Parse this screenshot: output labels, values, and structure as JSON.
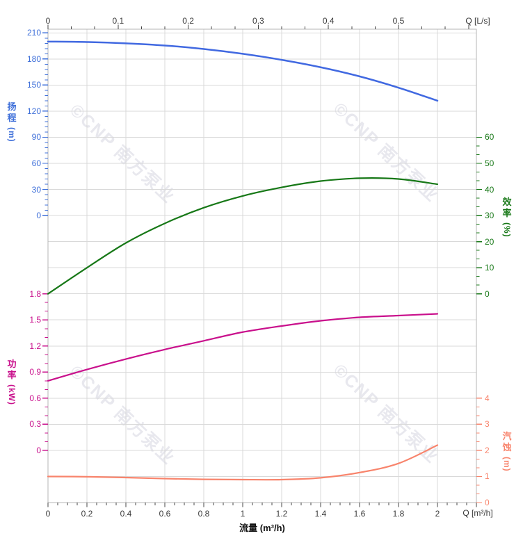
{
  "watermark": {
    "text": "©CNP 南方泵业",
    "color": "#e8e8ee"
  },
  "top_axis": {
    "unit_label": "Q [L/s]",
    "tick_labels": [
      "0",
      "0.1",
      "0.2",
      "0.3",
      "0.4",
      "0.5"
    ],
    "text_color": "#3a3a3a"
  },
  "bottom_axis": {
    "unit_label": "Q [m³/h]",
    "title": "流量 (m³/h)",
    "tick_labels": [
      "0",
      "0.2",
      "0.4",
      "0.6",
      "0.8",
      "1",
      "1.2",
      "1.4",
      "1.6",
      "1.8",
      "2"
    ],
    "text_color": "#3a3a3a"
  },
  "left_axes": {
    "head": {
      "title": "扬程",
      "unit": "(m)",
      "color": "#3E6FD9",
      "tick_labels": [
        "210",
        "180",
        "150",
        "120",
        "90",
        "60",
        "30",
        "0"
      ]
    },
    "power": {
      "title": "功率",
      "unit": "(kW)",
      "color": "#C9108C",
      "tick_labels": [
        "1.8",
        "1.5",
        "1.2",
        "0.9",
        "0.6",
        "0.3",
        "0"
      ]
    }
  },
  "right_axes": {
    "efficiency": {
      "title": "效率",
      "unit": "(%)",
      "color": "#177817",
      "tick_labels": [
        "60",
        "50",
        "40",
        "30",
        "20",
        "10",
        "0"
      ]
    },
    "npsh": {
      "title": "汽蚀",
      "unit": "(m)",
      "color": "#F8846C",
      "tick_labels": [
        "4",
        "3",
        "2",
        "1",
        "0"
      ]
    }
  },
  "colors": {
    "grid": "#d9d9d9",
    "border": "#b5b5b5",
    "tick": "#444444",
    "background": "#ffffff"
  },
  "chart_data": {
    "type": "line",
    "title": "",
    "xlabel": "流量 (m³/h)",
    "x_unit_top": "L/s",
    "x_unit_bottom": "m³/h",
    "x_range_m3h": [
      0,
      2.2
    ],
    "top_axis_ticks_Ls": [
      0,
      0.1,
      0.2,
      0.3,
      0.4,
      0.5
    ],
    "grid": true,
    "legend_position": "none",
    "x": [
      0,
      0.2,
      0.4,
      0.6,
      0.8,
      1.0,
      1.2,
      1.4,
      1.6,
      1.8,
      2.0
    ],
    "series": [
      {
        "name": "head",
        "label": "扬程",
        "unit": "m",
        "axis": "head",
        "axis_range": [
          0,
          210
        ],
        "color": "#4169E1",
        "values": [
          200,
          199.5,
          198,
          195.5,
          191.5,
          186,
          179,
          170.5,
          160,
          147,
          132
        ]
      },
      {
        "name": "efficiency",
        "label": "效率",
        "unit": "%",
        "axis": "efficiency",
        "axis_range": [
          0,
          60
        ],
        "color": "#177817",
        "values": [
          0,
          10,
          19.5,
          27,
          33,
          37.5,
          40.8,
          43.2,
          44.3,
          44,
          42
        ]
      },
      {
        "name": "power",
        "label": "功率",
        "unit": "kW",
        "axis": "power",
        "axis_range": [
          0,
          1.8
        ],
        "color": "#C9108C",
        "values": [
          0.8,
          0.93,
          1.05,
          1.16,
          1.26,
          1.36,
          1.43,
          1.49,
          1.53,
          1.55,
          1.57
        ]
      },
      {
        "name": "npsh",
        "label": "汽蚀",
        "unit": "m",
        "axis": "npsh",
        "axis_range": [
          0,
          4
        ],
        "color": "#F8846C",
        "values": [
          1.0,
          0.99,
          0.96,
          0.92,
          0.89,
          0.88,
          0.88,
          0.95,
          1.15,
          1.5,
          2.2
        ]
      }
    ]
  }
}
